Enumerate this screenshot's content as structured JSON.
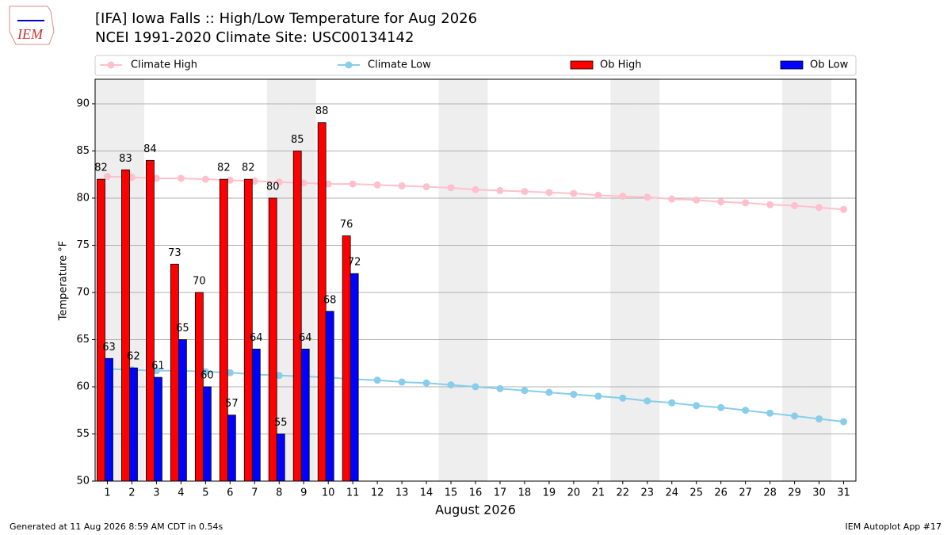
{
  "chart_data": {
    "type": "bar",
    "title": "[IFA] Iowa Falls :: High/Low Temperature for Aug 2026",
    "subtitle": "NCEI 1991-2020 Climate Site: USC00134142",
    "xlabel": "August 2026",
    "ylabel": "Temperature °F",
    "logo": "IEM",
    "footer_left": "Generated at 11 Aug 2026 8:59 AM CDT in 0.54s",
    "footer_right": "IEM Autoplot App #17",
    "x": [
      1,
      2,
      3,
      4,
      5,
      6,
      7,
      8,
      9,
      10,
      11,
      12,
      13,
      14,
      15,
      16,
      17,
      18,
      19,
      20,
      21,
      22,
      23,
      24,
      25,
      26,
      27,
      28,
      29,
      30,
      31
    ],
    "xlim": [
      0.5,
      31.5
    ],
    "xticks": [
      1,
      2,
      3,
      4,
      5,
      6,
      7,
      8,
      9,
      10,
      11,
      12,
      13,
      14,
      15,
      16,
      17,
      18,
      19,
      20,
      21,
      22,
      23,
      24,
      25,
      26,
      27,
      28,
      29,
      30,
      31
    ],
    "ylim": [
      50,
      92.6
    ],
    "yticks": [
      50,
      55,
      60,
      65,
      70,
      75,
      80,
      85,
      90
    ],
    "grid": true,
    "legend": "top",
    "shaded_days": [
      1,
      2,
      8,
      9,
      15,
      16,
      22,
      23,
      29,
      30
    ],
    "shade_color": "#eeeeee",
    "series": [
      {
        "name": "Climate High",
        "type": "line",
        "color": "pink",
        "values": [
          82.3,
          82.2,
          82.1,
          82.1,
          82.0,
          81.9,
          81.8,
          81.7,
          81.6,
          81.5,
          81.5,
          81.4,
          81.3,
          81.2,
          81.1,
          80.9,
          80.8,
          80.7,
          80.6,
          80.5,
          80.3,
          80.2,
          80.1,
          79.9,
          79.8,
          79.6,
          79.5,
          79.3,
          79.2,
          79.0,
          78.8
        ]
      },
      {
        "name": "Climate Low",
        "type": "line",
        "color": "skyblue",
        "values": [
          61.9,
          61.8,
          61.7,
          61.7,
          61.6,
          61.5,
          61.3,
          61.2,
          61.1,
          61.0,
          60.8,
          60.7,
          60.5,
          60.4,
          60.2,
          60.0,
          59.8,
          59.6,
          59.4,
          59.2,
          59.0,
          58.8,
          58.5,
          58.3,
          58.0,
          57.8,
          57.5,
          57.2,
          56.9,
          56.6,
          56.3
        ]
      },
      {
        "name": "Ob High",
        "type": "bar",
        "color": "#ff0000",
        "values": [
          82,
          83,
          84,
          73,
          70,
          82,
          82,
          80,
          85,
          88,
          76,
          null,
          null,
          null,
          null,
          null,
          null,
          null,
          null,
          null,
          null,
          null,
          null,
          null,
          null,
          null,
          null,
          null,
          null,
          null,
          null
        ]
      },
      {
        "name": "Ob Low",
        "type": "bar",
        "color": "#0000ff",
        "values": [
          63,
          62,
          61,
          65,
          60,
          57,
          64,
          55,
          64,
          68,
          72,
          null,
          null,
          null,
          null,
          null,
          null,
          null,
          null,
          null,
          null,
          null,
          null,
          null,
          null,
          null,
          null,
          null,
          null,
          null,
          null
        ]
      }
    ]
  }
}
